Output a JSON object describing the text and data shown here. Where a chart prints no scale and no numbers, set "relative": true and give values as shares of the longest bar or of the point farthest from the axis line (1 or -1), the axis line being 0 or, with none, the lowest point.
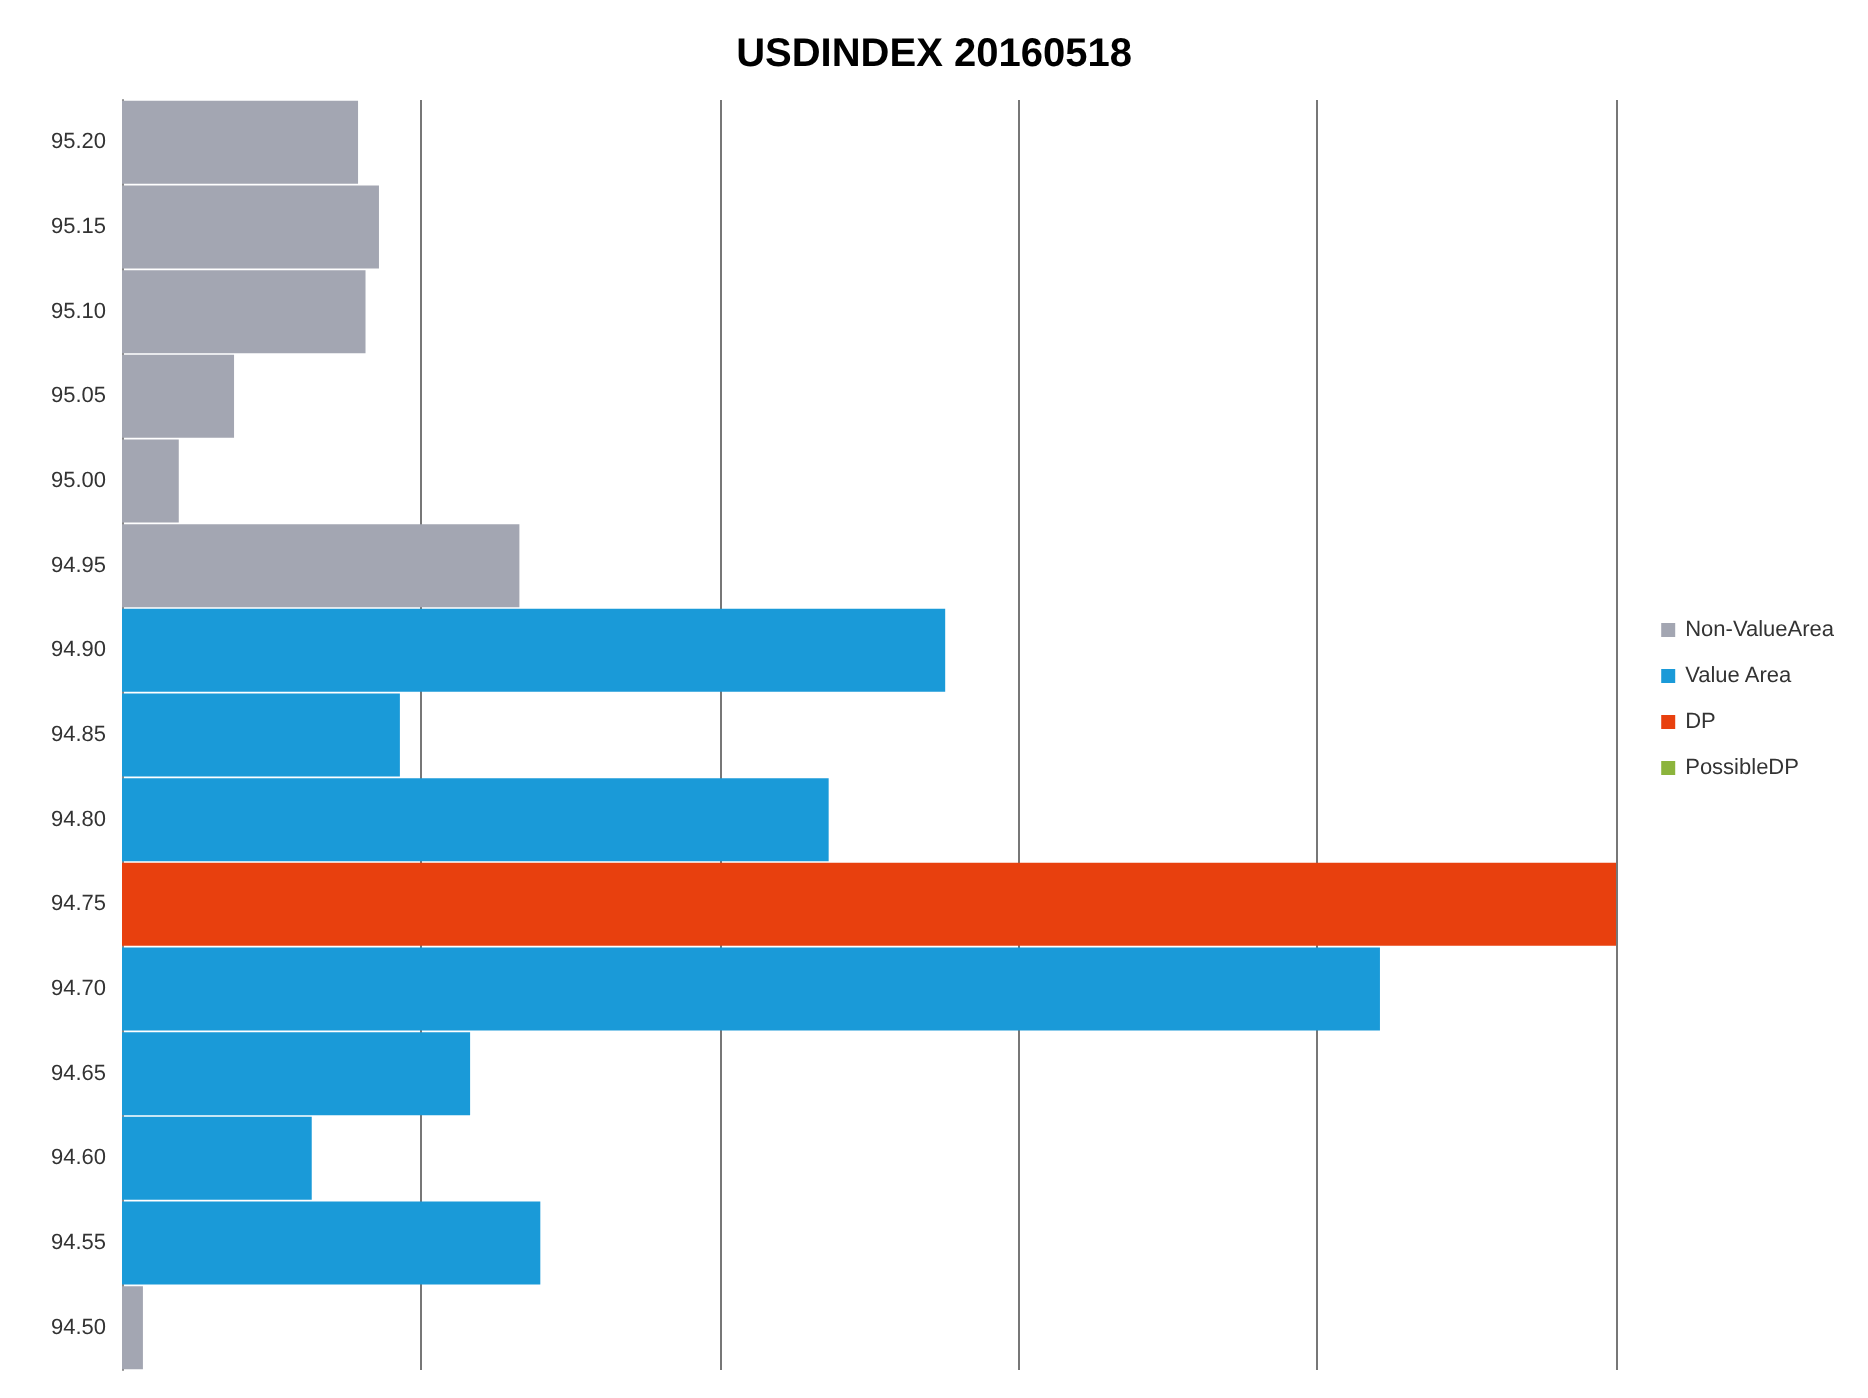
{
  "chart_data": {
    "type": "bar",
    "title": "USDINDEX 20160518",
    "orientation": "horizontal",
    "stacked": true,
    "relative": true,
    "grid": "x",
    "legend": "right",
    "categories": [
      "95.20",
      "95.15",
      "95.10",
      "95.05",
      "95.00",
      "94.95",
      "94.90",
      "94.85",
      "94.80",
      "94.75",
      "94.70",
      "94.65",
      "94.60",
      "94.55",
      "94.50"
    ],
    "series": [
      {
        "name": "Non-ValueArea",
        "color": "#a3a6b2",
        "values": [
          0.158,
          0.172,
          0.163,
          0.075,
          0.038,
          0.266,
          null,
          null,
          null,
          null,
          null,
          null,
          null,
          null,
          0.014
        ]
      },
      {
        "name": "Value Area",
        "color": "#1a9ad8",
        "values": [
          null,
          null,
          null,
          null,
          null,
          null,
          0.551,
          0.186,
          0.473,
          null,
          0.842,
          0.233,
          0.127,
          0.28,
          null
        ]
      },
      {
        "name": "DP",
        "color": "#e8400e",
        "values": [
          null,
          null,
          null,
          null,
          null,
          null,
          null,
          null,
          null,
          1,
          null,
          null,
          null,
          null,
          null
        ]
      },
      {
        "name": "PossibleDP",
        "color": "#8cb43c",
        "values": [
          null,
          null,
          null,
          null,
          null,
          null,
          null,
          null,
          null,
          null,
          null,
          null,
          null,
          null,
          null
        ]
      }
    ]
  }
}
